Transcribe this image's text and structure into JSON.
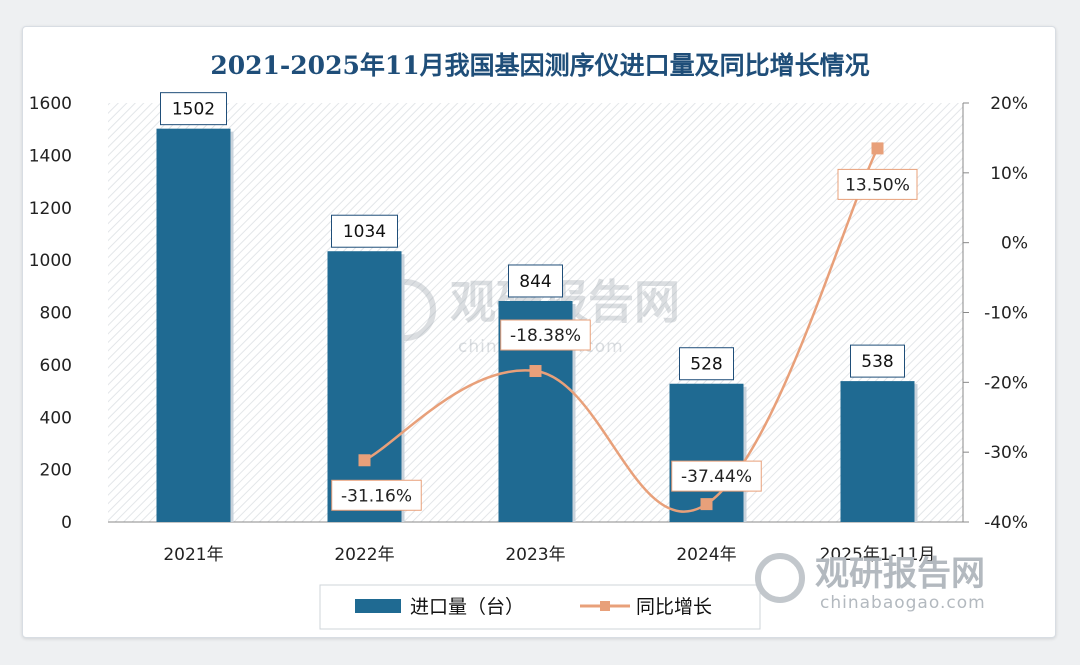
{
  "chart_data": {
    "type": "bar+line",
    "title": "2021-2025年11月我国基因测序仪进口量及同比增长情况",
    "categories": [
      "2021年",
      "2022年",
      "2023年",
      "2024年",
      "2025年1-11月"
    ],
    "series": [
      {
        "name": "进口量（台）",
        "type": "bar",
        "axis": "left",
        "values": [
          1502,
          1034,
          844,
          528,
          538
        ],
        "labels": [
          "1502",
          "1034",
          "844",
          "528",
          "538"
        ],
        "color": "#1f6a92"
      },
      {
        "name": "同比增长",
        "type": "line",
        "axis": "right",
        "values": [
          null,
          -31.16,
          -18.38,
          -37.44,
          13.5
        ],
        "labels": [
          "",
          "-31.16%",
          "-18.38%",
          "-37.44%",
          "13.50%"
        ],
        "color": "#e8a07a"
      }
    ],
    "ylim_left": [
      0,
      1600
    ],
    "yticks_left": [
      "0",
      "200",
      "400",
      "600",
      "800",
      "1000",
      "1200",
      "1400",
      "1600"
    ],
    "ylim_right": [
      -40,
      20
    ],
    "yticks_right": [
      "-40%",
      "-30%",
      "-20%",
      "-10%",
      "0%",
      "10%",
      "20%"
    ],
    "legend": "bottom",
    "grid": false
  },
  "watermark": {
    "text": "观研报告网",
    "url": "chinabaogao.com"
  }
}
